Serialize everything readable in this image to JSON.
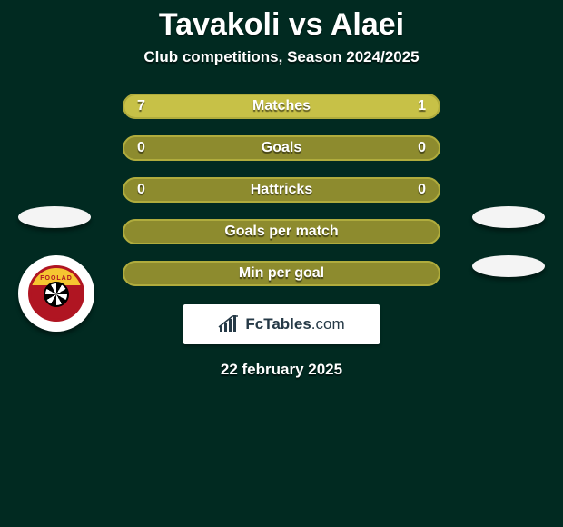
{
  "colors": {
    "background": "#012a21",
    "olive_fill": "#8d8b2e",
    "olive_border": "#b0ac3d",
    "highlight": "#c7c147",
    "text": "#ffffff"
  },
  "title": "Tavakoli vs Alaei",
  "subtitle": "Club competitions, Season 2024/2025",
  "bars": [
    {
      "label": "Matches",
      "left": "7",
      "right": "1",
      "left_pct": 87.5,
      "right_pct": 12.5,
      "show_values": true
    },
    {
      "label": "Goals",
      "left": "0",
      "right": "0",
      "left_pct": 0,
      "right_pct": 0,
      "show_values": true
    },
    {
      "label": "Hattricks",
      "left": "0",
      "right": "0",
      "left_pct": 0,
      "right_pct": 0,
      "show_values": true
    },
    {
      "label": "Goals per match",
      "left": "",
      "right": "",
      "left_pct": 0,
      "right_pct": 0,
      "show_values": false
    },
    {
      "label": "Min per goal",
      "left": "",
      "right": "",
      "left_pct": 0,
      "right_pct": 0,
      "show_values": false
    }
  ],
  "branding": {
    "name": "FcTables",
    "domain": ".com"
  },
  "date": "22 february 2025",
  "club_badge": {
    "text": "FOOLAD"
  }
}
